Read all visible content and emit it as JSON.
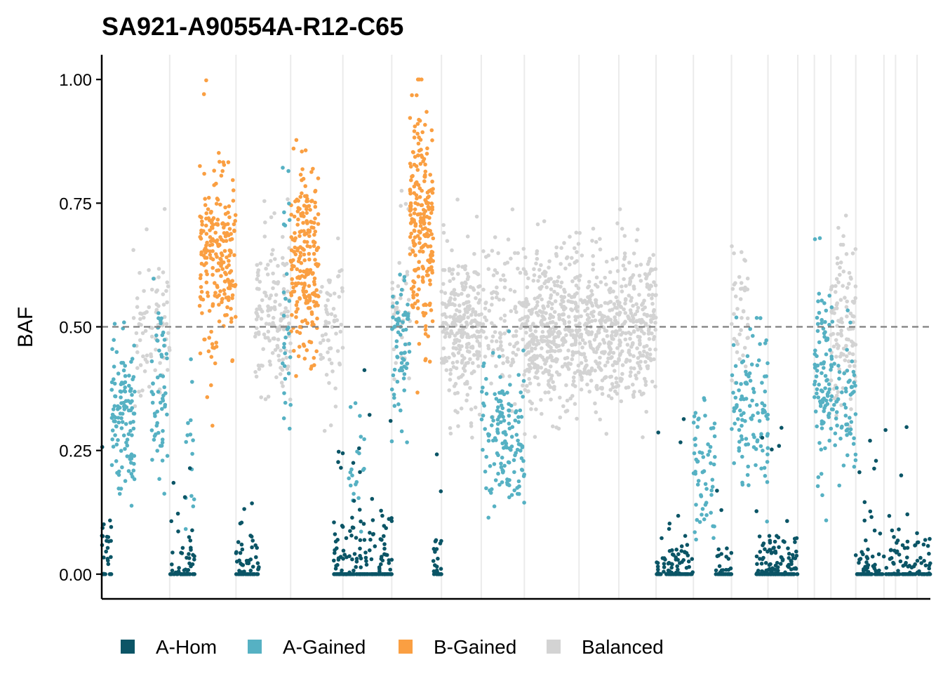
{
  "chart_data": {
    "type": "scatter",
    "title": "SA921-A90554A-R12-C65",
    "xlabel": "",
    "ylabel": "BAF",
    "ylim": [
      -0.05,
      1.05
    ],
    "y_ticks": [
      "0.00",
      "0.25",
      "0.50",
      "0.75",
      "1.00"
    ],
    "reference_line": {
      "y": 0.5,
      "style": "dashed",
      "color": "#7f7f7f"
    },
    "x_ticks": [],
    "grid": "vertical chromosome boundaries",
    "legend": {
      "position": "bottom",
      "entries": [
        {
          "name": "A-Hom",
          "color": "#0b5566"
        },
        {
          "name": "A-Gained",
          "color": "#56b1c3"
        },
        {
          "name": "B-Gained",
          "color": "#fa9f42"
        },
        {
          "name": "Balanced",
          "color": "#d3d3d3"
        }
      ]
    },
    "x_range": [
      0,
      1000
    ],
    "boundaries": [
      82,
      162,
      228,
      291,
      350,
      410,
      458,
      510,
      576,
      624,
      669,
      714,
      760,
      804,
      840,
      860,
      880,
      910,
      944,
      958,
      984
    ],
    "segments": [
      {
        "x": [
          0,
          12
        ],
        "state": "A-Hom",
        "center": 0.02,
        "spread": 0.06,
        "n": 30
      },
      {
        "x": [
          12,
          40
        ],
        "state": "A-Gained",
        "center": 0.32,
        "spread": 0.08,
        "n": 120
      },
      {
        "x": [
          38,
          82
        ],
        "state": "Balanced",
        "center": 0.5,
        "spread": 0.08,
        "n": 80
      },
      {
        "x": [
          60,
          80
        ],
        "state": "A-Gained",
        "center": 0.38,
        "spread": 0.08,
        "n": 60
      },
      {
        "x": [
          82,
          112
        ],
        "state": "A-Hom",
        "center": 0.03,
        "spread": 0.04,
        "n": 70
      },
      {
        "x": [
          100,
          112
        ],
        "state": "A-Gained",
        "center": 0.25,
        "spread": 0.08,
        "n": 15
      },
      {
        "x": [
          118,
          162
        ],
        "state": "B-Gained",
        "center": 0.64,
        "spread": 0.1,
        "n": 220
      },
      {
        "x": [
          162,
          190
        ],
        "state": "A-Hom",
        "center": 0.05,
        "spread": 0.04,
        "n": 60
      },
      {
        "x": [
          185,
          228
        ],
        "state": "Balanced",
        "center": 0.52,
        "spread": 0.09,
        "n": 140
      },
      {
        "x": [
          218,
          228
        ],
        "state": "A-Gained",
        "center": 0.5,
        "spread": 0.12,
        "n": 30
      },
      {
        "x": [
          228,
          262
        ],
        "state": "B-Gained",
        "center": 0.62,
        "spread": 0.1,
        "n": 220
      },
      {
        "x": [
          262,
          291
        ],
        "state": "Balanced",
        "center": 0.5,
        "spread": 0.08,
        "n": 60
      },
      {
        "x": [
          280,
          350
        ],
        "state": "A-Hom",
        "center": 0.05,
        "spread": 0.06,
        "n": 200
      },
      {
        "x": [
          298,
          318
        ],
        "state": "A-Gained",
        "center": 0.22,
        "spread": 0.08,
        "n": 20
      },
      {
        "x": [
          350,
          372
        ],
        "state": "A-Gained",
        "center": 0.45,
        "spread": 0.08,
        "n": 70
      },
      {
        "x": [
          350,
          372
        ],
        "state": "Balanced",
        "center": 0.55,
        "spread": 0.08,
        "n": 40
      },
      {
        "x": [
          372,
          400
        ],
        "state": "B-Gained",
        "center": 0.72,
        "spread": 0.12,
        "n": 230
      },
      {
        "x": [
          400,
          410
        ],
        "state": "A-Hom",
        "center": 0.04,
        "spread": 0.04,
        "n": 30
      },
      {
        "x": [
          410,
          458
        ],
        "state": "Balanced",
        "center": 0.49,
        "spread": 0.08,
        "n": 260
      },
      {
        "x": [
          458,
          510
        ],
        "state": "A-Gained",
        "center": 0.29,
        "spread": 0.07,
        "n": 150
      },
      {
        "x": [
          458,
          510
        ],
        "state": "Balanced",
        "center": 0.5,
        "spread": 0.08,
        "n": 120
      },
      {
        "x": [
          510,
          576
        ],
        "state": "Balanced",
        "center": 0.49,
        "spread": 0.08,
        "n": 400
      },
      {
        "x": [
          576,
          624
        ],
        "state": "Balanced",
        "center": 0.5,
        "spread": 0.08,
        "n": 250
      },
      {
        "x": [
          624,
          669
        ],
        "state": "Balanced",
        "center": 0.5,
        "spread": 0.08,
        "n": 220
      },
      {
        "x": [
          669,
          714
        ],
        "state": "A-Hom",
        "center": 0.02,
        "spread": 0.04,
        "n": 110
      },
      {
        "x": [
          714,
          740
        ],
        "state": "A-Gained",
        "center": 0.2,
        "spread": 0.06,
        "n": 60
      },
      {
        "x": [
          740,
          760
        ],
        "state": "A-Hom",
        "center": 0.03,
        "spread": 0.03,
        "n": 40
      },
      {
        "x": [
          760,
          804
        ],
        "state": "A-Gained",
        "center": 0.33,
        "spread": 0.08,
        "n": 110
      },
      {
        "x": [
          760,
          780
        ],
        "state": "Balanced",
        "center": 0.52,
        "spread": 0.07,
        "n": 40
      },
      {
        "x": [
          790,
          840
        ],
        "state": "A-Hom",
        "center": 0.03,
        "spread": 0.04,
        "n": 180
      },
      {
        "x": [
          860,
          880
        ],
        "state": "A-Gained",
        "center": 0.4,
        "spread": 0.1,
        "n": 90
      },
      {
        "x": [
          880,
          910
        ],
        "state": "A-Gained",
        "center": 0.34,
        "spread": 0.08,
        "n": 70
      },
      {
        "x": [
          880,
          910
        ],
        "state": "Balanced",
        "center": 0.5,
        "spread": 0.08,
        "n": 110
      },
      {
        "x": [
          910,
          1000
        ],
        "state": "A-Hom",
        "center": 0.04,
        "spread": 0.05,
        "n": 200
      }
    ]
  }
}
